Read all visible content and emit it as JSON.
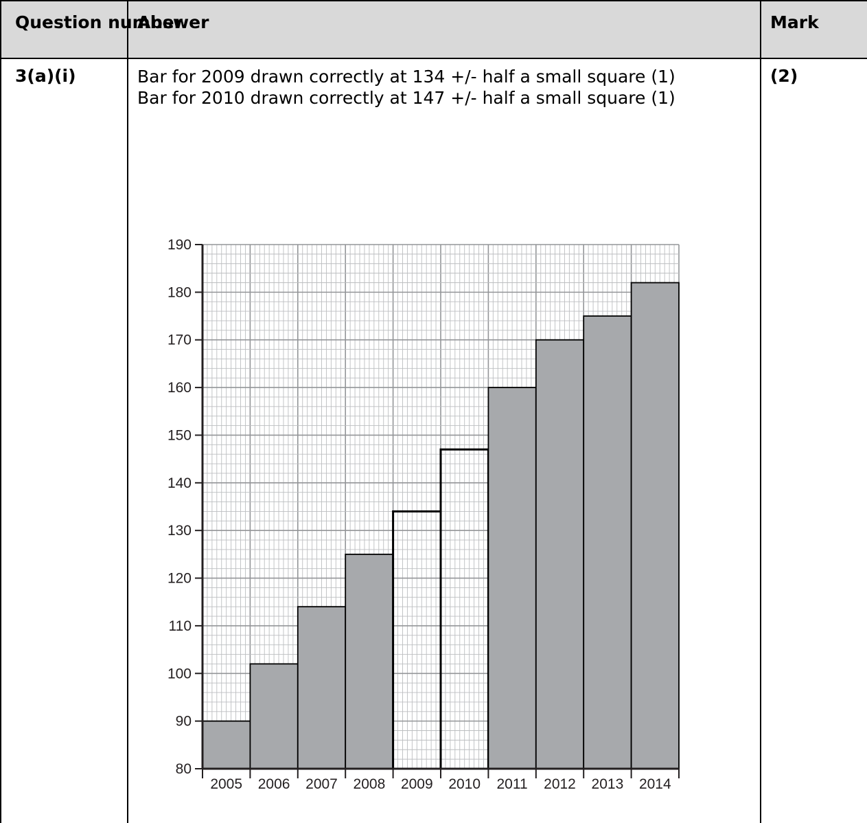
{
  "table": {
    "headers": [
      "Question number",
      "Answer",
      "Mark"
    ],
    "question": "3(a)(i)",
    "answer_lines": [
      "Bar for 2009 drawn correctly at 134 +/- half a small square (1)",
      "Bar for 2010 drawn correctly at 147 +/- half a small square (1)"
    ],
    "mark": "(2)"
  },
  "chart_data": {
    "type": "bar",
    "categories": [
      "2005",
      "2006",
      "2007",
      "2008",
      "2009",
      "2010",
      "2011",
      "2012",
      "2013",
      "2014"
    ],
    "values": [
      90,
      102,
      114,
      125,
      134,
      147,
      160,
      170,
      175,
      182
    ],
    "unfilled_categories": [
      "2009",
      "2010"
    ],
    "fill_color": "#a7a9ac",
    "grid_minor_color": "#bcbec0",
    "grid_major_color": "#939598",
    "ylim": [
      80,
      190
    ],
    "yticks": [
      80,
      90,
      100,
      110,
      120,
      130,
      140,
      150,
      160,
      170,
      180,
      190
    ],
    "grid": true,
    "title": "",
    "xlabel": "",
    "ylabel": ""
  }
}
